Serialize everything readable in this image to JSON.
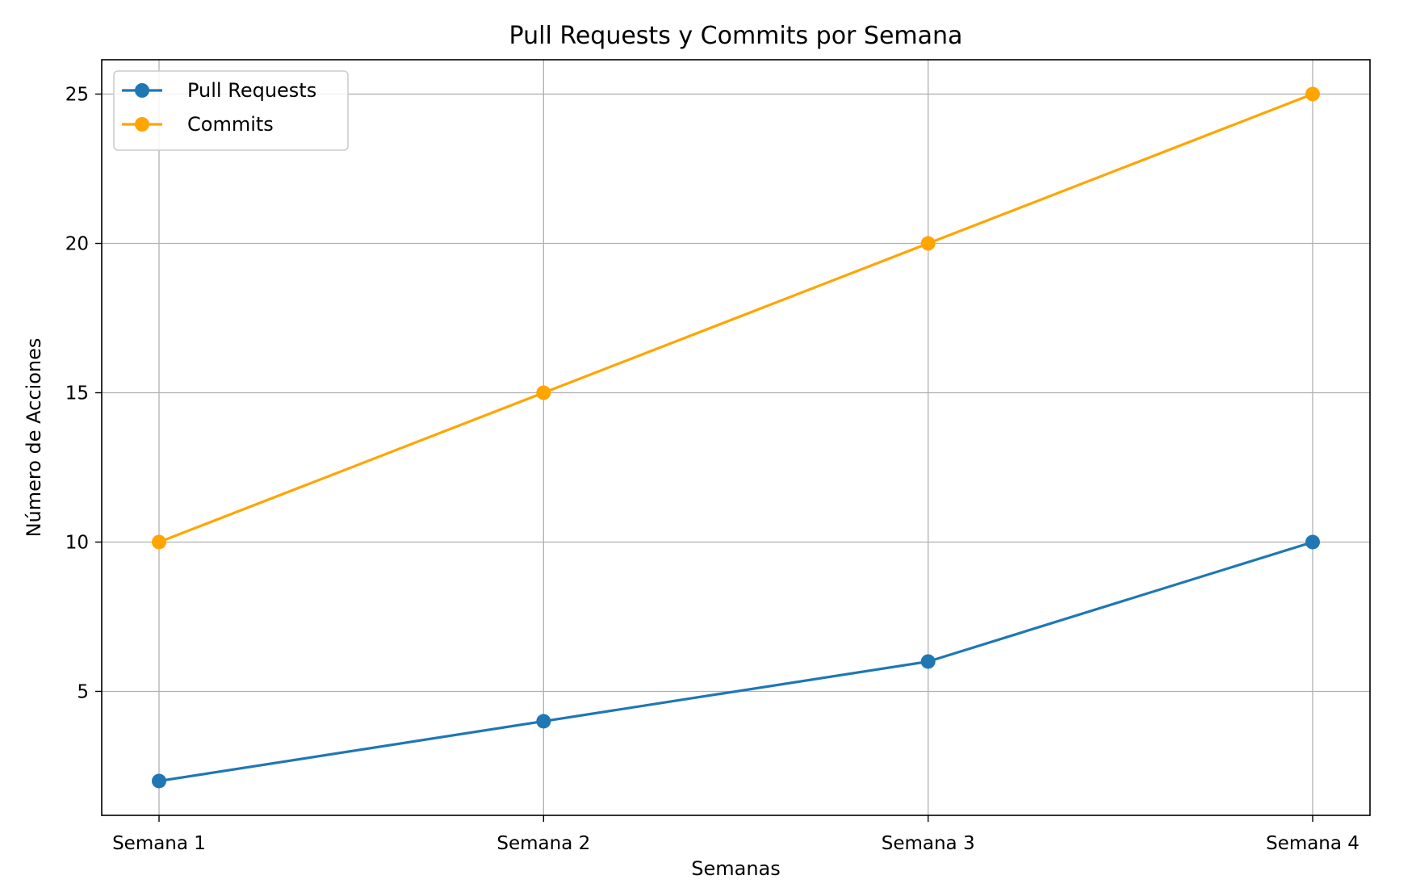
{
  "chart_data": {
    "type": "line",
    "title": "Pull Requests y Commits por Semana",
    "xlabel": "Semanas",
    "ylabel": "Número de Acciones",
    "categories": [
      "Semana 1",
      "Semana 2",
      "Semana 3",
      "Semana 4"
    ],
    "series": [
      {
        "name": "Pull Requests",
        "values": [
          2,
          4,
          6,
          10
        ],
        "color": "#1f77b4"
      },
      {
        "name": "Commits",
        "values": [
          10,
          15,
          20,
          25
        ],
        "color": "#ffa500"
      }
    ],
    "ylim": [
      0.85,
      26.15
    ],
    "yticks": [
      5,
      10,
      15,
      20,
      25
    ],
    "grid": true,
    "legend_position": "top-left",
    "grid_color": "#b0b0b0",
    "marker": "circle"
  }
}
